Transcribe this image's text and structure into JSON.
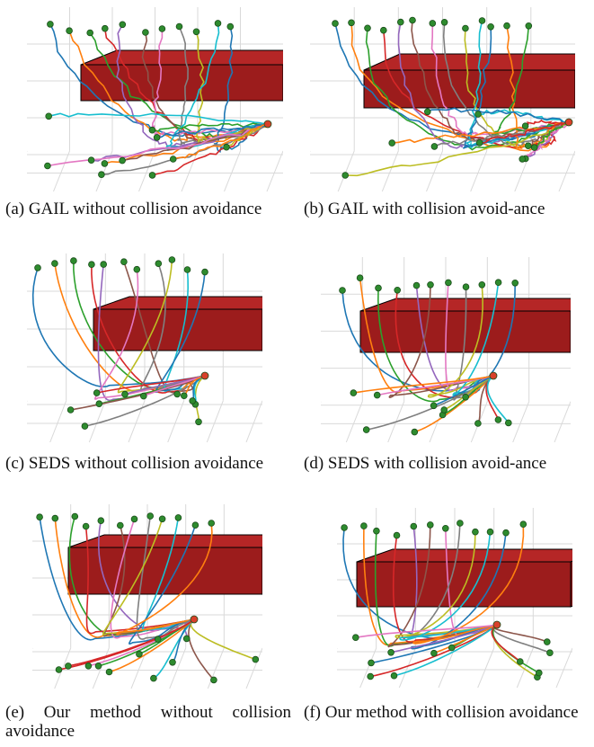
{
  "figure": {
    "panels": [
      {
        "id": "a",
        "caption": "(a)   GAIL   without   collision avoidance",
        "method": "GAIL",
        "collision_avoidance": false
      },
      {
        "id": "b",
        "caption": "(b) GAIL with collision avoid-ance",
        "method": "GAIL",
        "collision_avoidance": true
      },
      {
        "id": "c",
        "caption": "(c)   SEDS   without   collision avoidance",
        "method": "SEDS",
        "collision_avoidance": false
      },
      {
        "id": "d",
        "caption": "(d) SEDS with collision avoid-ance",
        "method": "SEDS",
        "collision_avoidance": true
      },
      {
        "id": "e",
        "caption": "(e) Our method without collision avoidance",
        "method": "Our method",
        "collision_avoidance": false
      },
      {
        "id": "f",
        "caption": "(f)   Our   method   with   collision avoidance",
        "method": "Our method",
        "collision_avoidance": true
      }
    ],
    "colors": {
      "obstacle_front": "#9c1c1c",
      "obstacle_top": "#b52626",
      "obstacle_side": "#7e1414",
      "start_marker": "#2e8b2e",
      "goal_marker": "#d8402a",
      "grid": "#d9d9d9",
      "trajectories": [
        "#1f77b4",
        "#ff7f0e",
        "#2ca02c",
        "#d62728",
        "#9467bd",
        "#8c564b",
        "#e377c2",
        "#7f7f7f",
        "#bcbd22",
        "#17becf"
      ]
    }
  }
}
